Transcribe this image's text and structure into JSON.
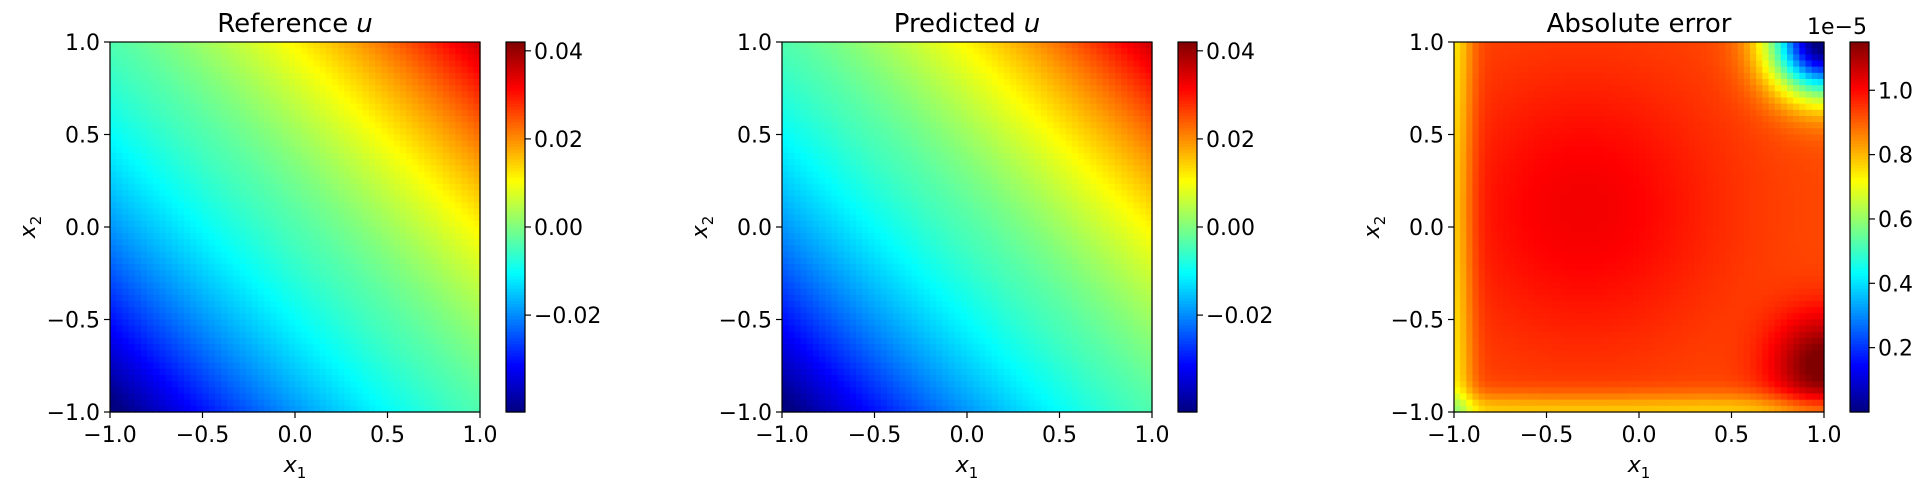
{
  "chart_data": [
    {
      "type": "heatmap",
      "field": "reference",
      "title": "Reference",
      "title_var": "u",
      "xlabel_var": "x",
      "xlabel_sub": "1",
      "ylabel_var": "x",
      "ylabel_sub": "2",
      "xlim": [
        -1.0,
        1.0
      ],
      "ylim": [
        -1.0,
        1.0
      ],
      "xticks": [
        "−1.0",
        "−0.5",
        "0.0",
        "0.5",
        "1.0"
      ],
      "yticks": [
        "−1.0",
        "−0.5",
        "0.0",
        "0.5",
        "1.0"
      ],
      "colormap": "jet",
      "colorbar": {
        "range": [
          -0.042,
          0.042
        ],
        "ticks": [
          -0.02,
          0.0,
          0.02,
          0.04
        ],
        "tick_labels": [
          "−0.02",
          "0.00",
          "0.02",
          "0.04"
        ],
        "offset_label": ""
      }
    },
    {
      "type": "heatmap",
      "field": "predicted",
      "title": "Predicted",
      "title_var": "u",
      "xlabel_var": "x",
      "xlabel_sub": "1",
      "ylabel_var": "x",
      "ylabel_sub": "2",
      "xlim": [
        -1.0,
        1.0
      ],
      "ylim": [
        -1.0,
        1.0
      ],
      "xticks": [
        "−1.0",
        "−0.5",
        "0.0",
        "0.5",
        "1.0"
      ],
      "yticks": [
        "−1.0",
        "−0.5",
        "0.0",
        "0.5",
        "1.0"
      ],
      "colormap": "jet",
      "colorbar": {
        "range": [
          -0.042,
          0.042
        ],
        "ticks": [
          -0.02,
          0.0,
          0.02,
          0.04
        ],
        "tick_labels": [
          "−0.02",
          "0.00",
          "0.02",
          "0.04"
        ],
        "offset_label": ""
      }
    },
    {
      "type": "heatmap",
      "field": "abs_error",
      "title": "Absolute error",
      "title_var": "",
      "xlabel_var": "x",
      "xlabel_sub": "1",
      "ylabel_var": "x",
      "ylabel_sub": "2",
      "xlim": [
        -1.0,
        1.0
      ],
      "ylim": [
        -1.0,
        1.0
      ],
      "xticks": [
        "−1.0",
        "−0.5",
        "0.0",
        "0.5",
        "1.0"
      ],
      "yticks": [
        "−1.0",
        "−0.5",
        "0.0",
        "0.5",
        "1.0"
      ],
      "colormap": "jet",
      "colorbar": {
        "range": [
          0.0,
          1.15
        ],
        "ticks": [
          0.2,
          0.4,
          0.6,
          0.8,
          1.0
        ],
        "tick_labels": [
          "0.2",
          "0.4",
          "0.6",
          "0.8",
          "1.0"
        ],
        "offset_label": "1e−5"
      }
    }
  ]
}
